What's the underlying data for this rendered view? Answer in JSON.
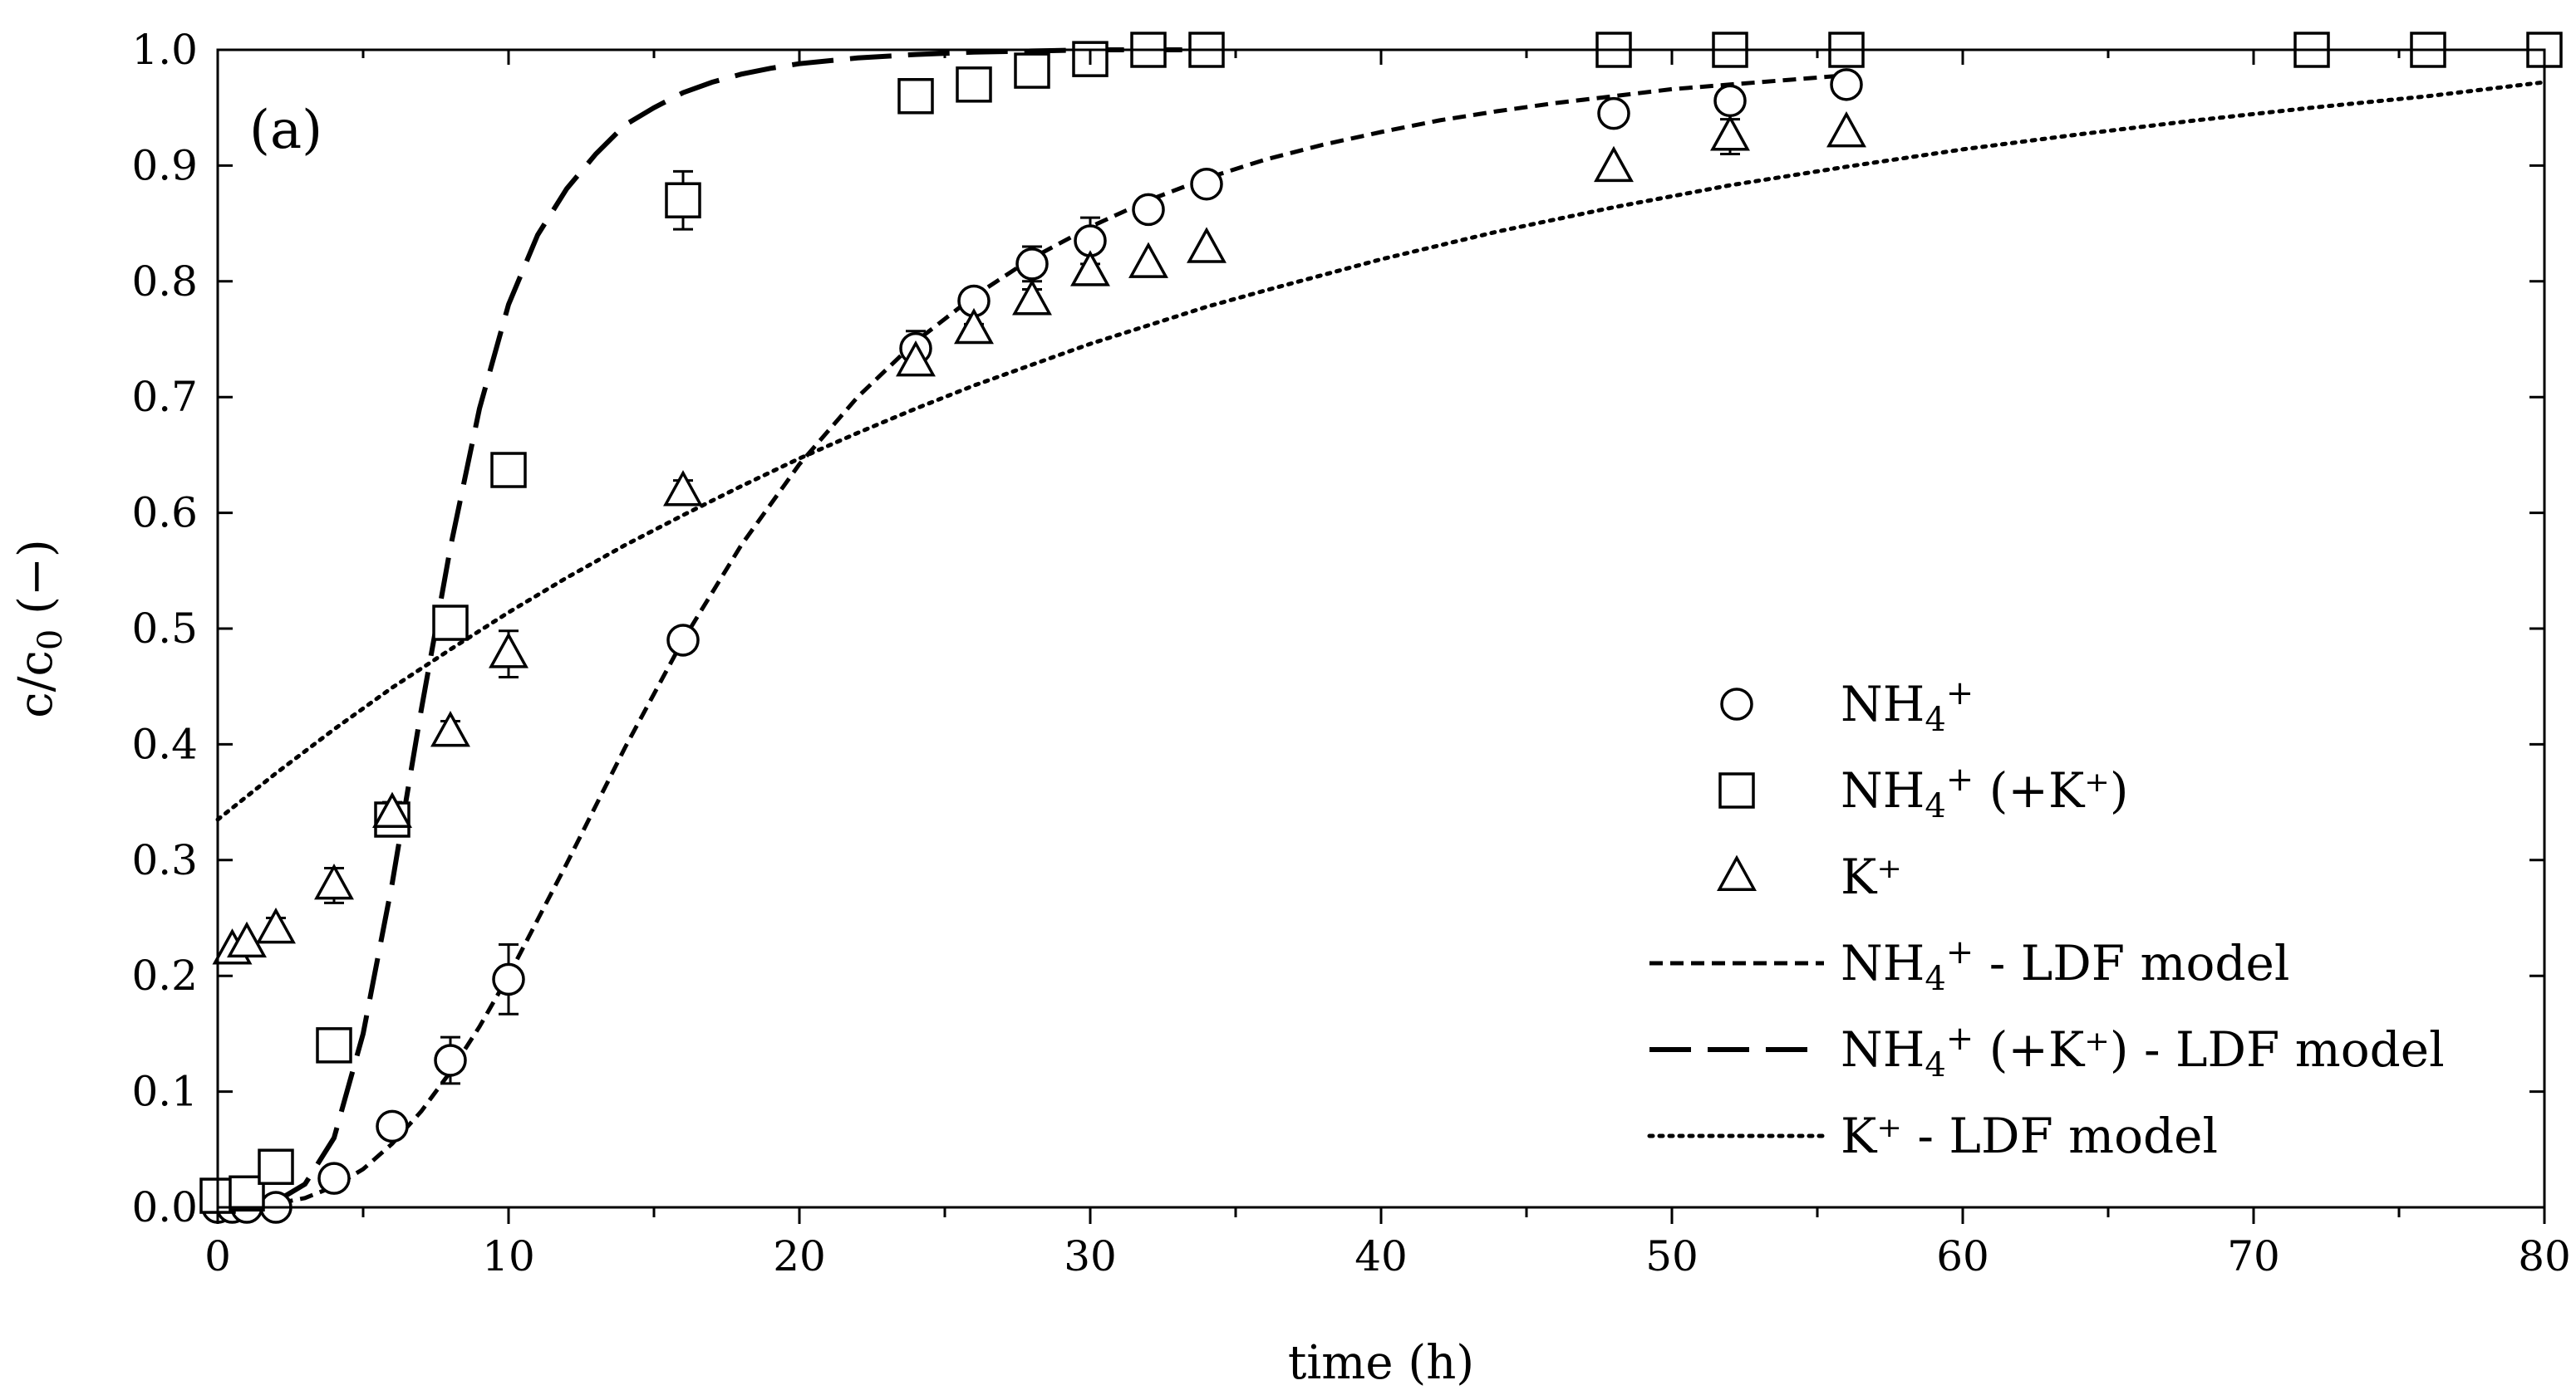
{
  "chart_data": {
    "type": "scatter",
    "panel_label": "(a)",
    "xlabel": "time (h)",
    "ylabel": "c/c₀ (−)",
    "ylabel_main": "c/c",
    "ylabel_sub": "0",
    "ylabel_tail": " (−)",
    "xlim": [
      0,
      80
    ],
    "ylim": [
      0.0,
      1.0
    ],
    "xticks": [
      0,
      10,
      20,
      30,
      40,
      50,
      60,
      70,
      80
    ],
    "yticks": [
      0.0,
      0.1,
      0.2,
      0.3,
      0.4,
      0.5,
      0.6,
      0.7,
      0.8,
      0.9,
      1.0
    ],
    "ytick_labels": [
      "0.0",
      "0.1",
      "0.2",
      "0.3",
      "0.4",
      "0.5",
      "0.6",
      "0.7",
      "0.8",
      "0.9",
      "1.0"
    ],
    "xtick_labels": [
      "0",
      "10",
      "20",
      "30",
      "40",
      "50",
      "60",
      "70",
      "80"
    ],
    "legend_position": "lower-right",
    "series": [
      {
        "name": "NH₄⁺",
        "name_main": "NH",
        "name_sub": "4",
        "name_sup": "+",
        "name_tail": "",
        "marker": "circle",
        "x": [
          0,
          0.5,
          1,
          2,
          4,
          6,
          8,
          10,
          16,
          24,
          26,
          28,
          30,
          32,
          34,
          48,
          52,
          56
        ],
        "y": [
          0.0,
          0.0,
          0.0,
          0.0,
          0.025,
          0.07,
          0.127,
          0.197,
          0.49,
          0.742,
          0.783,
          0.815,
          0.835,
          0.862,
          0.884,
          0.945,
          0.956,
          0.97
        ],
        "err": [
          0,
          0,
          0,
          0,
          0,
          0.01,
          0.02,
          0.03,
          0,
          0.015,
          0.01,
          0.015,
          0.02,
          0,
          0.01,
          0,
          0.01,
          0
        ]
      },
      {
        "name": "NH₄⁺ (+K⁺)",
        "name_main": "NH",
        "name_sub": "4",
        "name_sup": "+",
        "name_tail": " (+K⁺)",
        "marker": "square",
        "x": [
          0,
          1,
          2,
          4,
          6,
          8,
          10,
          16,
          24,
          26,
          28,
          30,
          32,
          34,
          48,
          52,
          56,
          72,
          76,
          80
        ],
        "y": [
          0.01,
          0.012,
          0.035,
          0.14,
          0.335,
          0.505,
          0.637,
          0.87,
          0.96,
          0.97,
          0.982,
          0.992,
          1.0,
          1.0,
          1.0,
          1.0,
          1.0,
          1.0,
          1.0,
          1.0
        ],
        "err": [
          0,
          0,
          0,
          0,
          0.01,
          0,
          0,
          0.025,
          0,
          0,
          0,
          0,
          0,
          0,
          0,
          0,
          0,
          0,
          0,
          0
        ]
      },
      {
        "name": "K⁺",
        "name_main": "K⁺",
        "name_sub": "",
        "name_sup": "",
        "name_tail": "",
        "marker": "triangle",
        "x": [
          0.5,
          1,
          2,
          4,
          6,
          8,
          10,
          16,
          24,
          26,
          28,
          30,
          32,
          34,
          48,
          52,
          56
        ],
        "y": [
          0.222,
          0.228,
          0.24,
          0.278,
          0.34,
          0.41,
          0.478,
          0.618,
          0.73,
          0.758,
          0.783,
          0.808,
          0.815,
          0.828,
          0.898,
          0.925,
          0.928
        ],
        "err": [
          0,
          0,
          0.01,
          0.015,
          0.01,
          0.01,
          0.02,
          0.01,
          0.01,
          0.005,
          0.01,
          0,
          0,
          0,
          0,
          0.015,
          0
        ]
      }
    ],
    "models": [
      {
        "name": "NH₄⁺ - LDF model",
        "name_main": "NH",
        "name_sub": "4",
        "name_sup": "+",
        "name_tail": " - LDF model",
        "style": "short-dash",
        "x": [
          0,
          1,
          2,
          3,
          4,
          5,
          6,
          7,
          8,
          9,
          10,
          12,
          14,
          16,
          18,
          20,
          22,
          24,
          26,
          28,
          30,
          32,
          34,
          36,
          38,
          40,
          42,
          44,
          46,
          48,
          50,
          52,
          54,
          56
        ],
        "y": [
          0.0,
          0.0,
          0.003,
          0.008,
          0.018,
          0.033,
          0.055,
          0.083,
          0.117,
          0.156,
          0.2,
          0.297,
          0.397,
          0.49,
          0.572,
          0.642,
          0.7,
          0.748,
          0.787,
          0.82,
          0.847,
          0.87,
          0.889,
          0.905,
          0.918,
          0.929,
          0.939,
          0.947,
          0.954,
          0.96,
          0.966,
          0.97,
          0.974,
          0.978
        ]
      },
      {
        "name": "NH₄⁺ (+K⁺) - LDF model",
        "name_main": "NH",
        "name_sub": "4",
        "name_sup": "+",
        "name_tail": " (+K⁺) - LDF model",
        "style": "long-dash",
        "x": [
          0,
          1,
          2,
          3,
          4,
          5,
          6,
          7,
          8,
          9,
          10,
          11,
          12,
          13,
          14,
          15,
          16,
          17,
          18,
          19,
          20,
          22,
          24,
          26,
          28,
          30,
          32,
          34
        ],
        "y": [
          0.0,
          0.0,
          0.005,
          0.02,
          0.06,
          0.15,
          0.28,
          0.43,
          0.57,
          0.69,
          0.78,
          0.84,
          0.88,
          0.91,
          0.935,
          0.95,
          0.963,
          0.972,
          0.979,
          0.984,
          0.988,
          0.993,
          0.996,
          0.998,
          0.999,
          1.0,
          1.0,
          1.0
        ]
      },
      {
        "name": "K⁺ - LDF model",
        "name_main": "K⁺",
        "name_sub": "",
        "name_sup": "",
        "name_tail": " - LDF model",
        "style": "dotted",
        "x": [
          0,
          2,
          4,
          6,
          8,
          10,
          12,
          14,
          16,
          18,
          20,
          22,
          24,
          26,
          28,
          30,
          32,
          34,
          36,
          40,
          44,
          48,
          52,
          56,
          60,
          64,
          68,
          72,
          76,
          80
        ],
        "y": [
          0.335,
          0.375,
          0.413,
          0.449,
          0.482,
          0.514,
          0.544,
          0.572,
          0.598,
          0.623,
          0.647,
          0.669,
          0.69,
          0.71,
          0.728,
          0.746,
          0.762,
          0.778,
          0.792,
          0.819,
          0.843,
          0.864,
          0.883,
          0.899,
          0.914,
          0.927,
          0.939,
          0.95,
          0.96,
          0.972
        ]
      }
    ]
  }
}
